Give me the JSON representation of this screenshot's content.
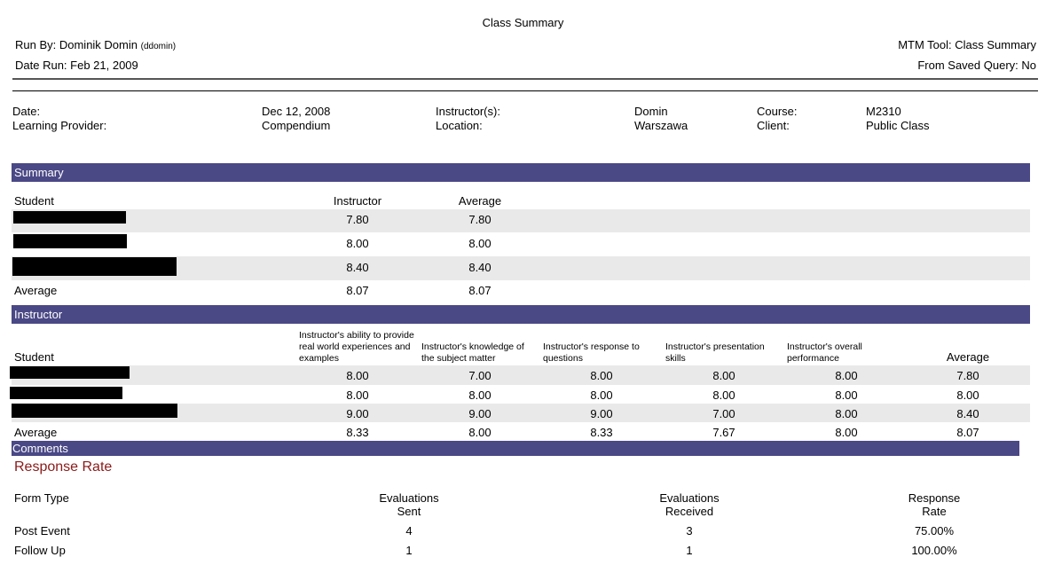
{
  "report": {
    "title": "Class Summary",
    "run_by_label": "Run By: Dominik Domin",
    "run_by_user": "(ddomin)",
    "date_run": "Date Run: Feb 21, 2009",
    "tool": "MTM Tool: Class Summary",
    "saved_query": "From Saved Query: No"
  },
  "class_info": {
    "date_label": "Date:",
    "date_value": "Dec 12, 2008",
    "provider_label": "Learning Provider:",
    "provider_value": "Compendium",
    "instructor_label": "Instructor(s):",
    "instructor_value": "Domin",
    "location_label": "Location:",
    "location_value": "Warszawa",
    "course_label": "Course:",
    "course_value": "M2310",
    "client_label": "Client:",
    "client_value": "Public Class"
  },
  "summary": {
    "band": "Summary",
    "col_student": "Student",
    "col_instructor": "Instructor",
    "col_average": "Average",
    "rows": [
      {
        "instructor": "7.80",
        "average": "7.80"
      },
      {
        "instructor": "8.00",
        "average": "8.00"
      },
      {
        "instructor": "8.40",
        "average": "8.40"
      }
    ],
    "avg_label": "Average",
    "avg_instructor": "8.07",
    "avg_average": "8.07"
  },
  "instructor": {
    "band": "Instructor",
    "col_student": "Student",
    "questions": [
      "Instructor's ability to provide real world experiences and examples",
      "Instructor's knowledge of the subject matter",
      "Instructor's response to questions",
      "Instructor's presentation skills",
      "Instructor's overall performance"
    ],
    "col_average": "Average",
    "rows": [
      {
        "q1": "8.00",
        "q2": "7.00",
        "q3": "8.00",
        "q4": "8.00",
        "q5": "8.00",
        "avg": "7.80"
      },
      {
        "q1": "8.00",
        "q2": "8.00",
        "q3": "8.00",
        "q4": "8.00",
        "q5": "8.00",
        "avg": "8.00"
      },
      {
        "q1": "9.00",
        "q2": "9.00",
        "q3": "9.00",
        "q4": "7.00",
        "q5": "8.00",
        "avg": "8.40"
      }
    ],
    "avg_label": "Average",
    "averages": {
      "q1": "8.33",
      "q2": "8.00",
      "q3": "8.33",
      "q4": "7.67",
      "q5": "8.00",
      "avg": "8.07"
    }
  },
  "comments": {
    "band": "Comments"
  },
  "response_rate": {
    "title": "Response Rate",
    "col_form_type": "Form Type",
    "col_sent_1": "Evaluations",
    "col_sent_2": "Sent",
    "col_received_1": "Evaluations",
    "col_received_2": "Received",
    "col_rate_1": "Response",
    "col_rate_2": "Rate",
    "rows": [
      {
        "form": "Post Event",
        "sent": "4",
        "received": "3",
        "rate": "75.00%"
      },
      {
        "form": "Follow Up",
        "sent": "1",
        "received": "1",
        "rate": "100.00%"
      }
    ]
  },
  "colors": {
    "band": "#4a4885",
    "row_shade": "#e9e9e9",
    "response_title": "#8b1a1a"
  }
}
